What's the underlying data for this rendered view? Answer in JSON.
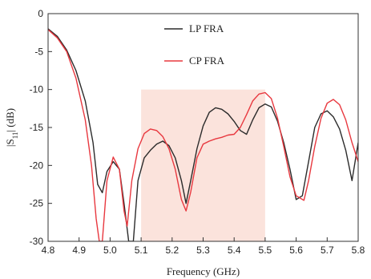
{
  "chart_data": {
    "type": "line",
    "title": "",
    "xlabel": "Frequency (GHz)",
    "ylabel": "|S11| (dB)",
    "xlim": [
      4.8,
      5.8
    ],
    "ylim": [
      -30,
      0
    ],
    "xticks": [
      "4.8",
      "4.9",
      "5.0",
      "5.1",
      "5.2",
      "5.3",
      "5.4",
      "5.5",
      "5.6",
      "5.7",
      "5.8"
    ],
    "yticks": [
      "0",
      "-5",
      "-10",
      "-15",
      "-20",
      "-25",
      "-30"
    ],
    "grid": false,
    "legend_position": "top-right",
    "highlight_band": {
      "x": [
        5.1,
        5.5
      ],
      "y": [
        -30,
        -10
      ],
      "color": "#fbe3dc"
    },
    "series": [
      {
        "name": "LP FRA",
        "color": "#2b2b2b",
        "x": [
          4.8,
          4.83,
          4.86,
          4.89,
          4.92,
          4.945,
          4.96,
          4.975,
          4.99,
          5.01,
          5.03,
          5.045,
          5.06,
          5.075,
          5.09,
          5.11,
          5.13,
          5.15,
          5.17,
          5.19,
          5.21,
          5.23,
          5.245,
          5.26,
          5.28,
          5.3,
          5.32,
          5.34,
          5.36,
          5.38,
          5.4,
          5.42,
          5.44,
          5.46,
          5.48,
          5.5,
          5.52,
          5.54,
          5.56,
          5.58,
          5.6,
          5.62,
          5.64,
          5.66,
          5.68,
          5.7,
          5.72,
          5.74,
          5.76,
          5.78,
          5.8
        ],
        "y": [
          -2.0,
          -3.0,
          -4.8,
          -7.5,
          -11.5,
          -17.0,
          -22.5,
          -23.6,
          -20.8,
          -19.5,
          -20.5,
          -25.0,
          -30.0,
          -30.0,
          -22.0,
          -19.0,
          -18.0,
          -17.2,
          -16.8,
          -17.4,
          -19.0,
          -22.0,
          -25.0,
          -22.0,
          -17.8,
          -14.8,
          -13.0,
          -12.4,
          -12.6,
          -13.2,
          -14.2,
          -15.4,
          -15.9,
          -14.0,
          -12.4,
          -11.9,
          -12.3,
          -14.2,
          -17.0,
          -20.5,
          -24.5,
          -24.0,
          -19.5,
          -15.0,
          -13.2,
          -12.8,
          -13.6,
          -15.2,
          -18.0,
          -22.0,
          -17.0
        ]
      },
      {
        "name": "CP FRA",
        "color": "#e8383f",
        "x": [
          4.8,
          4.83,
          4.86,
          4.89,
          4.92,
          4.94,
          4.955,
          4.965,
          4.975,
          4.99,
          5.01,
          5.03,
          5.045,
          5.055,
          5.07,
          5.09,
          5.11,
          5.13,
          5.15,
          5.17,
          5.19,
          5.21,
          5.23,
          5.245,
          5.26,
          5.28,
          5.3,
          5.32,
          5.34,
          5.36,
          5.38,
          5.4,
          5.42,
          5.44,
          5.46,
          5.48,
          5.5,
          5.52,
          5.54,
          5.56,
          5.58,
          5.6,
          5.625,
          5.64,
          5.66,
          5.68,
          5.7,
          5.72,
          5.74,
          5.76,
          5.78,
          5.8
        ],
        "y": [
          -2.1,
          -3.2,
          -5.0,
          -8.5,
          -14.0,
          -20.0,
          -27.0,
          -30.0,
          -30.0,
          -22.0,
          -18.9,
          -20.5,
          -26.0,
          -28.0,
          -22.0,
          -17.8,
          -15.8,
          -15.2,
          -15.4,
          -16.2,
          -17.8,
          -20.5,
          -24.5,
          -26.0,
          -23.5,
          -19.0,
          -17.2,
          -16.8,
          -16.5,
          -16.3,
          -16.0,
          -15.9,
          -15.0,
          -13.3,
          -11.5,
          -10.6,
          -10.4,
          -11.2,
          -13.8,
          -17.5,
          -21.5,
          -24.0,
          -24.6,
          -22.0,
          -17.5,
          -13.8,
          -11.8,
          -11.3,
          -12.0,
          -14.0,
          -17.0,
          -19.5
        ]
      }
    ]
  }
}
